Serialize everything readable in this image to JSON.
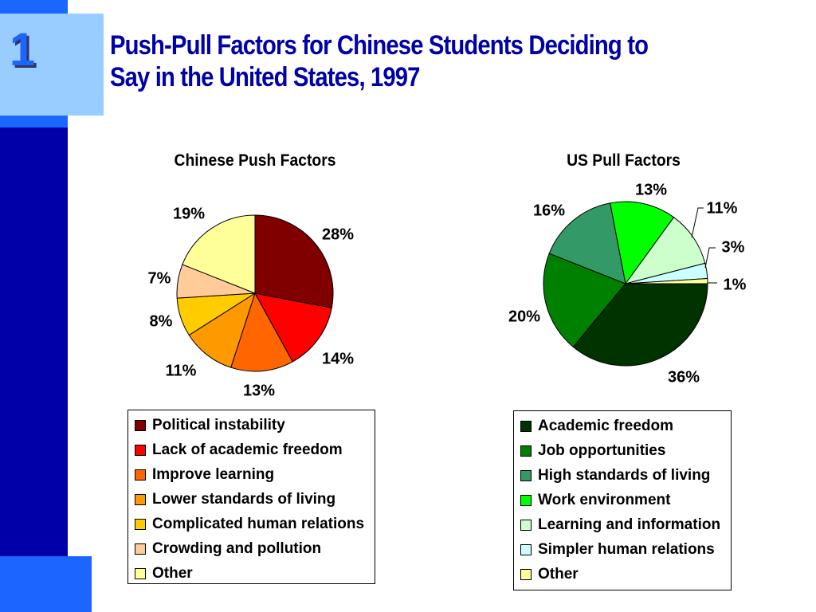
{
  "slide": {
    "number": "1",
    "title": "Push-Pull Factors for Chinese Students Deciding to Say in the United States, 1997"
  },
  "chart_data": [
    {
      "type": "pie",
      "title": "Chinese Push Factors",
      "labels": [
        "Political instability",
        "Lack of academic freedom",
        "Improve learning",
        "Lower standards of living",
        "Complicated human relations",
        "Crowding and pollution",
        "Other"
      ],
      "values": [
        28,
        14,
        13,
        11,
        8,
        7,
        19
      ],
      "value_labels": [
        "28%",
        "14%",
        "13%",
        "11%",
        "8%",
        "7%",
        "19%"
      ],
      "colors": [
        "#800000",
        "#ff0000",
        "#ff6600",
        "#ff9900",
        "#ffcc00",
        "#ffcc99",
        "#ffff99"
      ],
      "legend_position": "bottom"
    },
    {
      "type": "pie",
      "title": "US Pull Factors",
      "labels": [
        "Academic freedom",
        "Job opportunities",
        "High standards of living",
        "Work environment",
        "Learning and information",
        "Simpler human relations",
        "Other"
      ],
      "values": [
        36,
        20,
        16,
        13,
        11,
        3,
        1
      ],
      "value_labels": [
        "36%",
        "20%",
        "16%",
        "13%",
        "11%",
        "3%",
        "1%"
      ],
      "colors": [
        "#003300",
        "#008000",
        "#339966",
        "#00ff00",
        "#ccffcc",
        "#ccffff",
        "#ffff99"
      ],
      "legend_position": "bottom"
    }
  ]
}
